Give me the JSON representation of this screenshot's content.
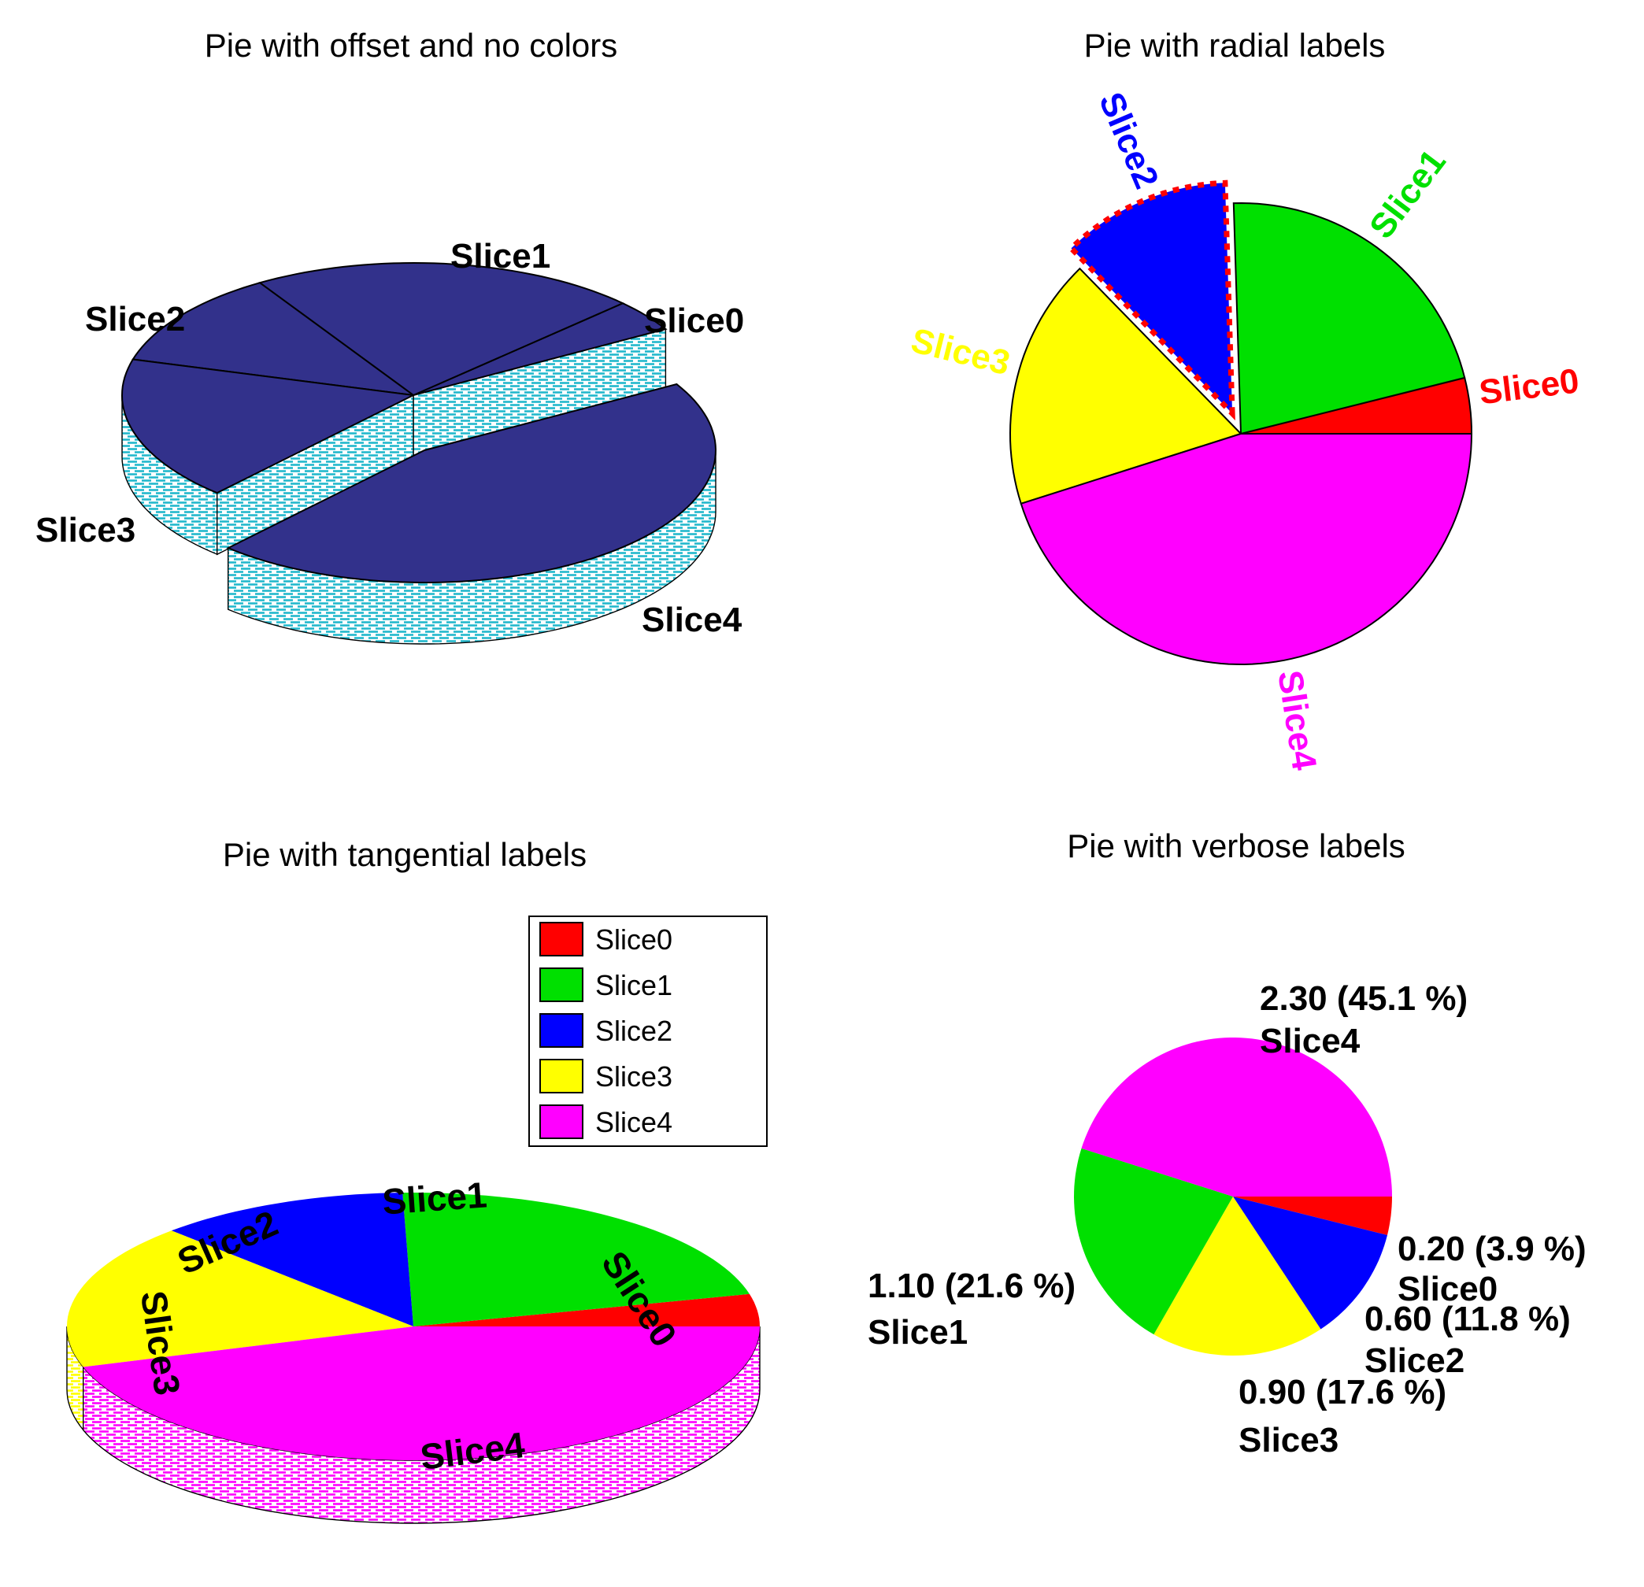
{
  "page": {
    "background": "#FFFFFF"
  },
  "palette": {
    "slice_colors": [
      "#FF0000",
      "#00E000",
      "#0000FF",
      "#FFFF00",
      "#FF00FF"
    ],
    "mono_fill": "#32318B",
    "mono_hatch": "#22B8CC",
    "outline": "#000000"
  },
  "chart_data": [
    {
      "type": "pie",
      "title": "Pie with offset and no colors",
      "labels": [
        "Slice0",
        "Slice1",
        "Slice2",
        "Slice3",
        "Slice4"
      ],
      "values": [
        0.2,
        1.1,
        0.6,
        0.9,
        2.3
      ],
      "percents": [
        3.9,
        21.6,
        11.8,
        17.6,
        45.1
      ],
      "style": "3d",
      "fill": "#32318B",
      "hatch": "#22B8CC",
      "label_color": "#000000",
      "exploded": "Slice4",
      "start_angle_deg": 30,
      "direction": "ccw",
      "segment_order": [
        "Slice0",
        "Slice1",
        "Slice2",
        "Slice3",
        "Slice4"
      ]
    },
    {
      "type": "pie",
      "title": "Pie with radial labels",
      "labels": [
        "Slice0",
        "Slice1",
        "Slice2",
        "Slice3",
        "Slice4"
      ],
      "values": [
        0.2,
        1.1,
        0.6,
        0.9,
        2.3
      ],
      "percents": [
        3.9,
        21.6,
        11.8,
        17.6,
        45.1
      ],
      "style": "2d",
      "colors": [
        "#FF0000",
        "#00E000",
        "#0000FF",
        "#FFFF00",
        "#FF00FF"
      ],
      "label_mode": "radial",
      "exploded": "Slice2",
      "exploded_border": {
        "color": "#FF0000",
        "style": "dashed"
      },
      "start_angle_deg": 0,
      "direction": "ccw",
      "segment_order": [
        "Slice0",
        "Slice1",
        "Slice2",
        "Slice3",
        "Slice4"
      ]
    },
    {
      "type": "pie",
      "title": "Pie with tangential labels",
      "labels": [
        "Slice0",
        "Slice1",
        "Slice2",
        "Slice3",
        "Slice4"
      ],
      "values": [
        0.2,
        1.1,
        0.6,
        0.9,
        2.3
      ],
      "percents": [
        3.9,
        21.6,
        11.8,
        17.6,
        45.1
      ],
      "style": "3d",
      "colors": [
        "#FF0000",
        "#00E000",
        "#0000FF",
        "#FFFF00",
        "#FF00FF"
      ],
      "label_mode": "tangential",
      "label_color": "#000000",
      "has_legend": true,
      "start_angle_deg": 0,
      "direction": "ccw",
      "segment_order": [
        "Slice0",
        "Slice1",
        "Slice2",
        "Slice3",
        "Slice4"
      ]
    },
    {
      "type": "pie",
      "title": "Pie with verbose labels",
      "labels": [
        "Slice0",
        "Slice1",
        "Slice2",
        "Slice3",
        "Slice4"
      ],
      "values": [
        0.2,
        1.1,
        0.6,
        0.9,
        2.3
      ],
      "percents": [
        3.9,
        21.6,
        11.8,
        17.6,
        45.1
      ],
      "style": "2d",
      "colors": [
        "#FF0000",
        "#00E000",
        "#0000FF",
        "#FFFF00",
        "#FF00FF"
      ],
      "label_mode": "verbose",
      "verbose_labels": [
        {
          "value_line": "0.20 (3.9 %)",
          "name_line": "Slice0"
        },
        {
          "value_line": "1.10 (21.6 %)",
          "name_line": "Slice1"
        },
        {
          "value_line": "0.60 (11.8 %)",
          "name_line": "Slice2"
        },
        {
          "value_line": "0.90 (17.6 %)",
          "name_line": "Slice3"
        },
        {
          "value_line": "2.30 (45.1 %)",
          "name_line": "Slice4"
        }
      ],
      "start_angle_deg": 0,
      "direction": "cw",
      "segment_order": [
        "Slice0",
        "Slice2",
        "Slice3",
        "Slice1",
        "Slice4"
      ]
    }
  ],
  "legend": {
    "entries": [
      "Slice0",
      "Slice1",
      "Slice2",
      "Slice3",
      "Slice4"
    ],
    "colors": [
      "#FF0000",
      "#00E000",
      "#0000FF",
      "#FFFF00",
      "#FF00FF"
    ]
  }
}
